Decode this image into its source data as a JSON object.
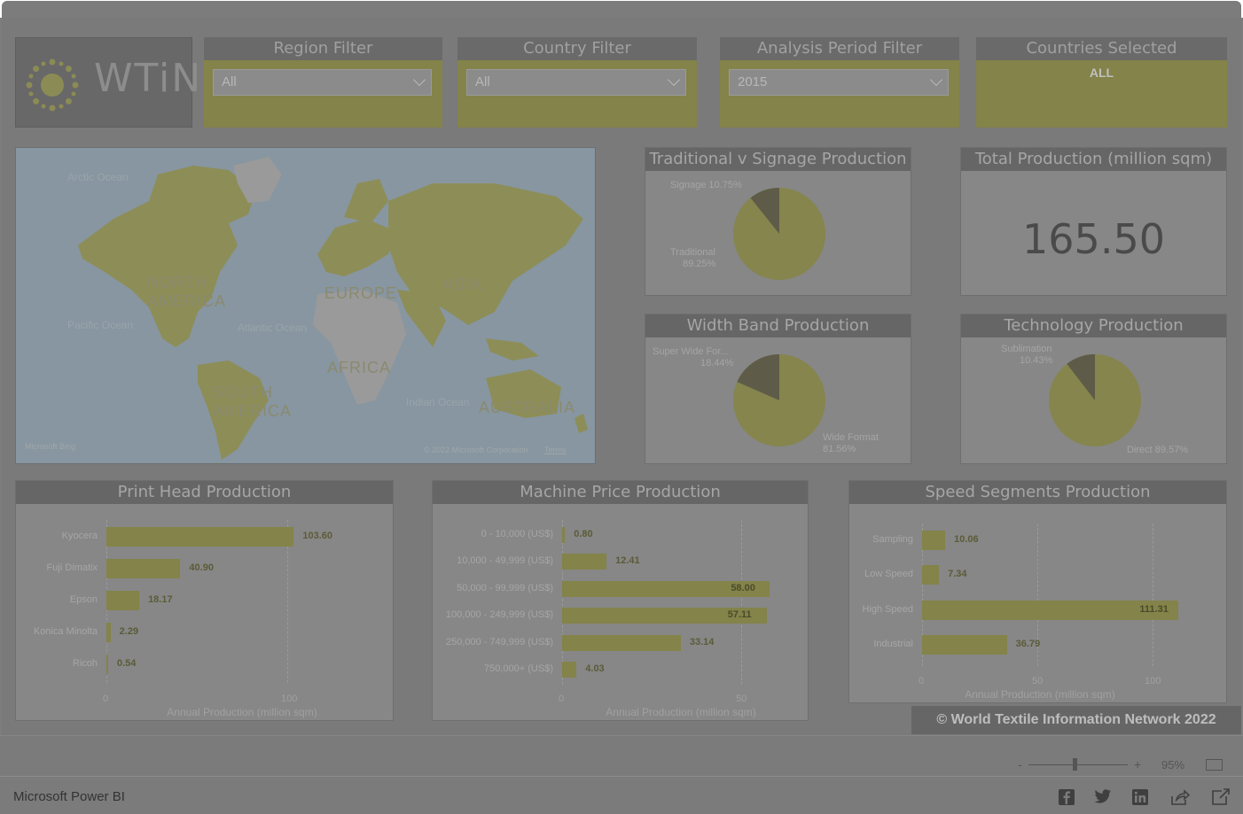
{
  "logo": {
    "text": "WTiN"
  },
  "filters": [
    {
      "title": "Region Filter",
      "value": "All"
    },
    {
      "title": "Country Filter",
      "value": "All"
    },
    {
      "title": "Analysis Period Filter",
      "value": "2015"
    }
  ],
  "countries_selected": {
    "title": "Countries Selected",
    "value": "ALL"
  },
  "map": {
    "continents": [
      "NORTH AMERICA",
      "EUROPE",
      "ASIA",
      "AFRICA",
      "SOUTH AMERICA",
      "AUSTRALIA"
    ],
    "oceans": [
      "Arctic Ocean",
      "Pacific Ocean",
      "Atlantic Ocean",
      "Indian Ocean"
    ],
    "attribution": "© 2022 Microsoft Corporation",
    "terms": "Terms",
    "provider": "Microsoft Bing"
  },
  "traditional_signage": {
    "title": "Traditional v Signage Production",
    "label_a": "Signage 10.75%",
    "label_b_name": "Traditional",
    "label_b_pct": "89.25%",
    "small_fraction": 0.1075
  },
  "total_production": {
    "title": "Total Production (million sqm)",
    "value": "165.50"
  },
  "width_band": {
    "title": "Width Band Production",
    "label_a_name": "Super Wide For...",
    "label_a_pct": "18.44%",
    "label_b_name": "Wide Format",
    "label_b_pct": "81.56%",
    "small_fraction": 0.1844
  },
  "technology": {
    "title": "Technology Production",
    "label_a_name": "Sublimation",
    "label_a_pct": "10.43%",
    "label_b": "Direct 89.57%",
    "small_fraction": 0.1043
  },
  "print_head": {
    "title": "Print Head Production",
    "xlabel": "Annual Production (million sqm)",
    "ticks": [
      "0",
      "100"
    ]
  },
  "machine_price": {
    "title": "Machine Price Production",
    "xlabel": "Annual Production (million sqm)",
    "ticks": [
      "0",
      "50"
    ]
  },
  "speed_segments": {
    "title": "Speed Segments Production",
    "xlabel": "Annual Production (million sqm)",
    "ticks": [
      "0",
      "50",
      "100"
    ]
  },
  "copyright": "© World Textile Information Network 2022",
  "footer": {
    "brand": "Microsoft Power BI",
    "zoom_minus": "-",
    "zoom_plus": "+",
    "zoom": "95%",
    "zoom_fraction": 0.95
  },
  "colors": {
    "accent": "#83834a",
    "overlay": "#7a7a7a"
  },
  "chart_data": [
    {
      "type": "pie",
      "title": "Traditional v Signage Production",
      "categories": [
        "Signage",
        "Traditional"
      ],
      "values": [
        10.75,
        89.25
      ]
    },
    {
      "type": "pie",
      "title": "Width Band Production",
      "categories": [
        "Super Wide For...",
        "Wide Format"
      ],
      "values": [
        18.44,
        81.56
      ]
    },
    {
      "type": "pie",
      "title": "Technology Production",
      "categories": [
        "Sublimation",
        "Direct"
      ],
      "values": [
        10.43,
        89.57
      ]
    },
    {
      "type": "bar",
      "title": "Print Head Production",
      "categories": [
        "Kyocera",
        "Fuji Dimatix",
        "Epson",
        "Konica Minolta",
        "Ricoh"
      ],
      "values": [
        103.6,
        40.9,
        18.17,
        2.29,
        0.54
      ],
      "value_labels": [
        "103.60",
        "40.90",
        "18.17",
        "2.29",
        "0.54"
      ],
      "xlabel": "Annual Production (million sqm)",
      "xlim": [
        0,
        100
      ],
      "ticks": [
        0,
        100
      ]
    },
    {
      "type": "bar",
      "title": "Machine Price Production",
      "categories": [
        "0 - 10,000 (US$)",
        "10,000 - 49,999 (US$)",
        "50,000 - 99,999 (US$)",
        "100,000 - 249,999 (US$)",
        "250,000 - 749,999 (US$)",
        "750,000+ (US$)"
      ],
      "values": [
        0.8,
        12.41,
        58.0,
        57.11,
        33.14,
        4.03
      ],
      "value_labels": [
        "0.80",
        "12.41",
        "58.00",
        "57.11",
        "33.14",
        "4.03"
      ],
      "xlabel": "Annual Production (million sqm)",
      "xlim": [
        0,
        50
      ],
      "ticks": [
        0,
        50
      ]
    },
    {
      "type": "bar",
      "title": "Speed Segments Production",
      "categories": [
        "Sampling",
        "Low Speed",
        "High Speed",
        "Industrial"
      ],
      "values": [
        10.06,
        7.34,
        111.31,
        36.79
      ],
      "value_labels": [
        "10.06",
        "7.34",
        "111.31",
        "36.79"
      ],
      "xlabel": "Annual Production (million sqm)",
      "xlim": [
        0,
        100
      ],
      "ticks": [
        0,
        50,
        100
      ]
    }
  ]
}
